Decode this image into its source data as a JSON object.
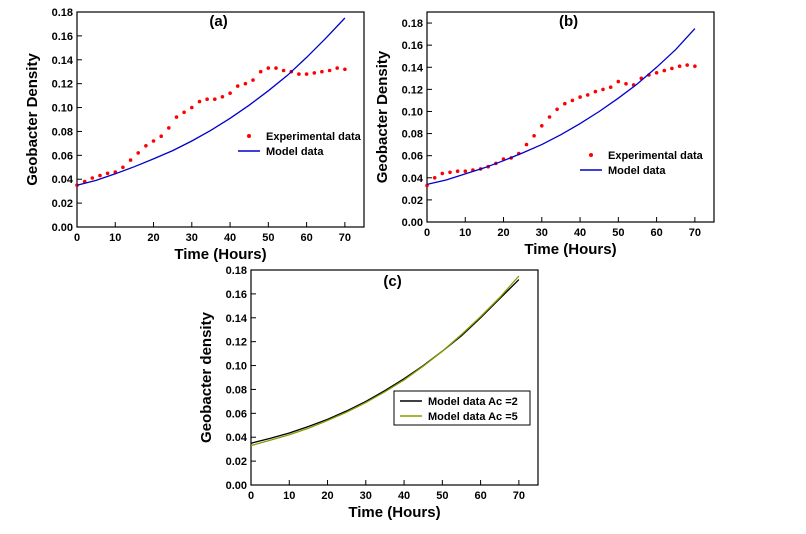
{
  "chart_data": [
    {
      "type": "scatter+line",
      "panel_label": "(a)",
      "xlabel": "Time (Hours)",
      "ylabel": "Geobacter Density",
      "xlim": [
        0,
        75
      ],
      "ylim": [
        0,
        0.18
      ],
      "xticks": [
        0,
        10,
        20,
        30,
        40,
        50,
        60,
        70
      ],
      "xtick_labels": [
        "0",
        "10",
        "20",
        "30",
        "40",
        "50",
        "60",
        "70"
      ],
      "yticks": [
        0,
        0.02,
        0.04,
        0.06,
        0.08,
        0.1,
        0.12,
        0.14,
        0.16,
        0.18
      ],
      "ytick_labels": [
        "0.00",
        "0.02",
        "0.04",
        "0.06",
        "0.08",
        "0.10",
        "0.12",
        "0.14",
        "0.16",
        "0.18"
      ],
      "legend_position": "middle-right",
      "series": [
        {
          "name": "Experimental data",
          "style": "points",
          "color": "#ff0000",
          "x": [
            0,
            2,
            4,
            6,
            8,
            10,
            12,
            14,
            16,
            18,
            20,
            22,
            24,
            26,
            28,
            30,
            32,
            34,
            36,
            38,
            40,
            42,
            44,
            46,
            48,
            50,
            52,
            54,
            56,
            58,
            60,
            62,
            64,
            66,
            68,
            70
          ],
          "y": [
            0.035,
            0.038,
            0.041,
            0.043,
            0.045,
            0.046,
            0.05,
            0.056,
            0.062,
            0.068,
            0.072,
            0.076,
            0.083,
            0.092,
            0.096,
            0.1,
            0.105,
            0.107,
            0.107,
            0.109,
            0.112,
            0.118,
            0.12,
            0.123,
            0.13,
            0.133,
            0.133,
            0.131,
            0.13,
            0.128,
            0.128,
            0.129,
            0.13,
            0.131,
            0.133,
            0.132
          ]
        },
        {
          "name": "Model data",
          "style": "line",
          "color": "#0000cc",
          "x": [
            0,
            5,
            10,
            15,
            20,
            25,
            30,
            35,
            40,
            45,
            50,
            55,
            60,
            65,
            70
          ],
          "y": [
            0.035,
            0.039,
            0.0445,
            0.0505,
            0.057,
            0.064,
            0.072,
            0.081,
            0.091,
            0.102,
            0.114,
            0.127,
            0.142,
            0.158,
            0.175
          ]
        }
      ]
    },
    {
      "type": "scatter+line",
      "panel_label": "(b)",
      "xlabel": "Time (Hours)",
      "ylabel": "Geobacter Density",
      "xlim": [
        0,
        75
      ],
      "ylim": [
        0,
        0.19
      ],
      "xticks": [
        0,
        10,
        20,
        30,
        40,
        50,
        60,
        70
      ],
      "xtick_labels": [
        "0",
        "10",
        "20",
        "30",
        "40",
        "50",
        "60",
        "70"
      ],
      "yticks": [
        0,
        0.02,
        0.04,
        0.06,
        0.08,
        0.1,
        0.12,
        0.14,
        0.16,
        0.18
      ],
      "ytick_labels": [
        "0.00",
        "0.02",
        "0.04",
        "0.06",
        "0.08",
        "0.10",
        "0.12",
        "0.14",
        "0.16",
        "0.18"
      ],
      "legend_position": "middle-right",
      "series": [
        {
          "name": "Experimental data",
          "style": "points",
          "color": "#ff0000",
          "x": [
            0,
            2,
            4,
            6,
            8,
            10,
            12,
            14,
            16,
            18,
            20,
            22,
            24,
            26,
            28,
            30,
            32,
            34,
            36,
            38,
            40,
            42,
            44,
            46,
            48,
            50,
            52,
            54,
            56,
            58,
            60,
            62,
            64,
            66,
            68,
            70
          ],
          "y": [
            0.033,
            0.04,
            0.044,
            0.045,
            0.046,
            0.046,
            0.047,
            0.048,
            0.05,
            0.053,
            0.057,
            0.058,
            0.062,
            0.07,
            0.078,
            0.087,
            0.095,
            0.102,
            0.107,
            0.11,
            0.113,
            0.115,
            0.118,
            0.12,
            0.122,
            0.127,
            0.125,
            0.124,
            0.13,
            0.133,
            0.135,
            0.137,
            0.139,
            0.141,
            0.142,
            0.141
          ]
        },
        {
          "name": "Model data",
          "style": "line",
          "color": "#0000cc",
          "x": [
            0,
            5,
            10,
            15,
            20,
            25,
            30,
            35,
            40,
            45,
            50,
            55,
            60,
            65,
            70
          ],
          "y": [
            0.034,
            0.038,
            0.0435,
            0.049,
            0.0555,
            0.0625,
            0.07,
            0.079,
            0.089,
            0.1,
            0.112,
            0.125,
            0.14,
            0.156,
            0.175
          ]
        }
      ]
    },
    {
      "type": "line",
      "panel_label": "(c)",
      "xlabel": "Time (Hours)",
      "ylabel": "Geobacter density",
      "xlim": [
        0,
        75
      ],
      "ylim": [
        0,
        0.18
      ],
      "xticks": [
        0,
        10,
        20,
        30,
        40,
        50,
        60,
        70
      ],
      "xtick_labels": [
        "0",
        "10",
        "20",
        "30",
        "40",
        "50",
        "60",
        "70"
      ],
      "yticks": [
        0,
        0.02,
        0.04,
        0.06,
        0.08,
        0.1,
        0.12,
        0.14,
        0.16,
        0.18
      ],
      "ytick_labels": [
        "0.00",
        "0.02",
        "0.04",
        "0.06",
        "0.08",
        "0.10",
        "0.12",
        "0.14",
        "0.16",
        "0.18"
      ],
      "legend_position": "middle-right",
      "series": [
        {
          "name": "Model data Ac =2",
          "style": "line",
          "color": "#000000",
          "x": [
            0,
            5,
            10,
            15,
            20,
            25,
            30,
            35,
            40,
            45,
            50,
            55,
            60,
            65,
            70
          ],
          "y": [
            0.035,
            0.039,
            0.0435,
            0.049,
            0.055,
            0.062,
            0.07,
            0.079,
            0.089,
            0.1,
            0.112,
            0.125,
            0.14,
            0.156,
            0.172
          ]
        },
        {
          "name": "Model data Ac =5",
          "style": "line",
          "color": "#8a9a00",
          "x": [
            0,
            5,
            10,
            15,
            20,
            25,
            30,
            35,
            40,
            45,
            50,
            55,
            60,
            65,
            70
          ],
          "y": [
            0.033,
            0.0375,
            0.042,
            0.0475,
            0.054,
            0.061,
            0.069,
            0.078,
            0.088,
            0.0995,
            0.112,
            0.126,
            0.141,
            0.157,
            0.175
          ]
        }
      ]
    }
  ]
}
